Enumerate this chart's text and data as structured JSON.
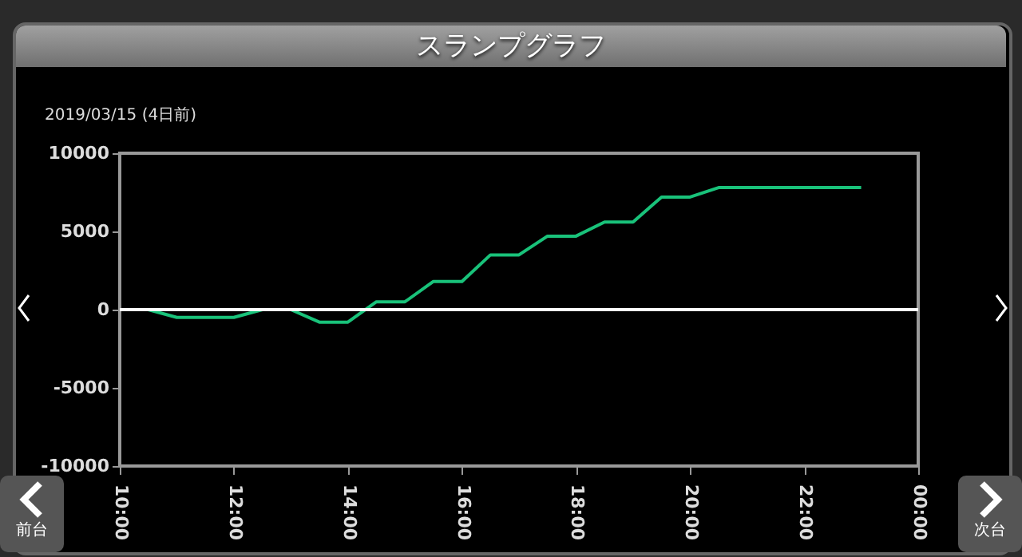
{
  "chart_data": {
    "type": "line",
    "title": "スランプグラフ",
    "subtitle": "2019/03/15 (4日前)",
    "annotations": [
      "前台",
      "次台"
    ],
    "x": [
      10.1,
      10.5,
      11,
      12,
      12.5,
      13,
      13.5,
      14,
      14.5,
      15,
      15.5,
      16,
      16.5,
      17,
      17.5,
      18,
      18.5,
      19,
      19.5,
      20,
      20.5,
      23
    ],
    "series": [
      {
        "color": "#19c27a",
        "values": [
          0,
          0,
          -500,
          -500,
          0,
          0,
          -800,
          -800,
          500,
          500,
          1800,
          1800,
          3500,
          3500,
          4700,
          4700,
          5600,
          5600,
          7200,
          7200,
          7800,
          7800
        ]
      }
    ],
    "xlim": [
      10,
      24
    ],
    "xticks": [
      {
        "value": 10,
        "label": "10:00"
      },
      {
        "value": 12,
        "label": "12:00"
      },
      {
        "value": 14,
        "label": "14:00"
      },
      {
        "value": 16,
        "label": "16:00"
      },
      {
        "value": 18,
        "label": "18:00"
      },
      {
        "value": 20,
        "label": "20:00"
      },
      {
        "value": 22,
        "label": "22:00"
      },
      {
        "value": 24,
        "label": "00:00"
      }
    ],
    "ylim": [
      -10000,
      10000
    ],
    "yticks": [
      -10000,
      -5000,
      0,
      5000,
      10000
    ],
    "ref_lines": [
      {
        "axis": "y",
        "value": 0,
        "color": "#ffffff"
      }
    ],
    "marker": "none",
    "line_style": "solid"
  }
}
